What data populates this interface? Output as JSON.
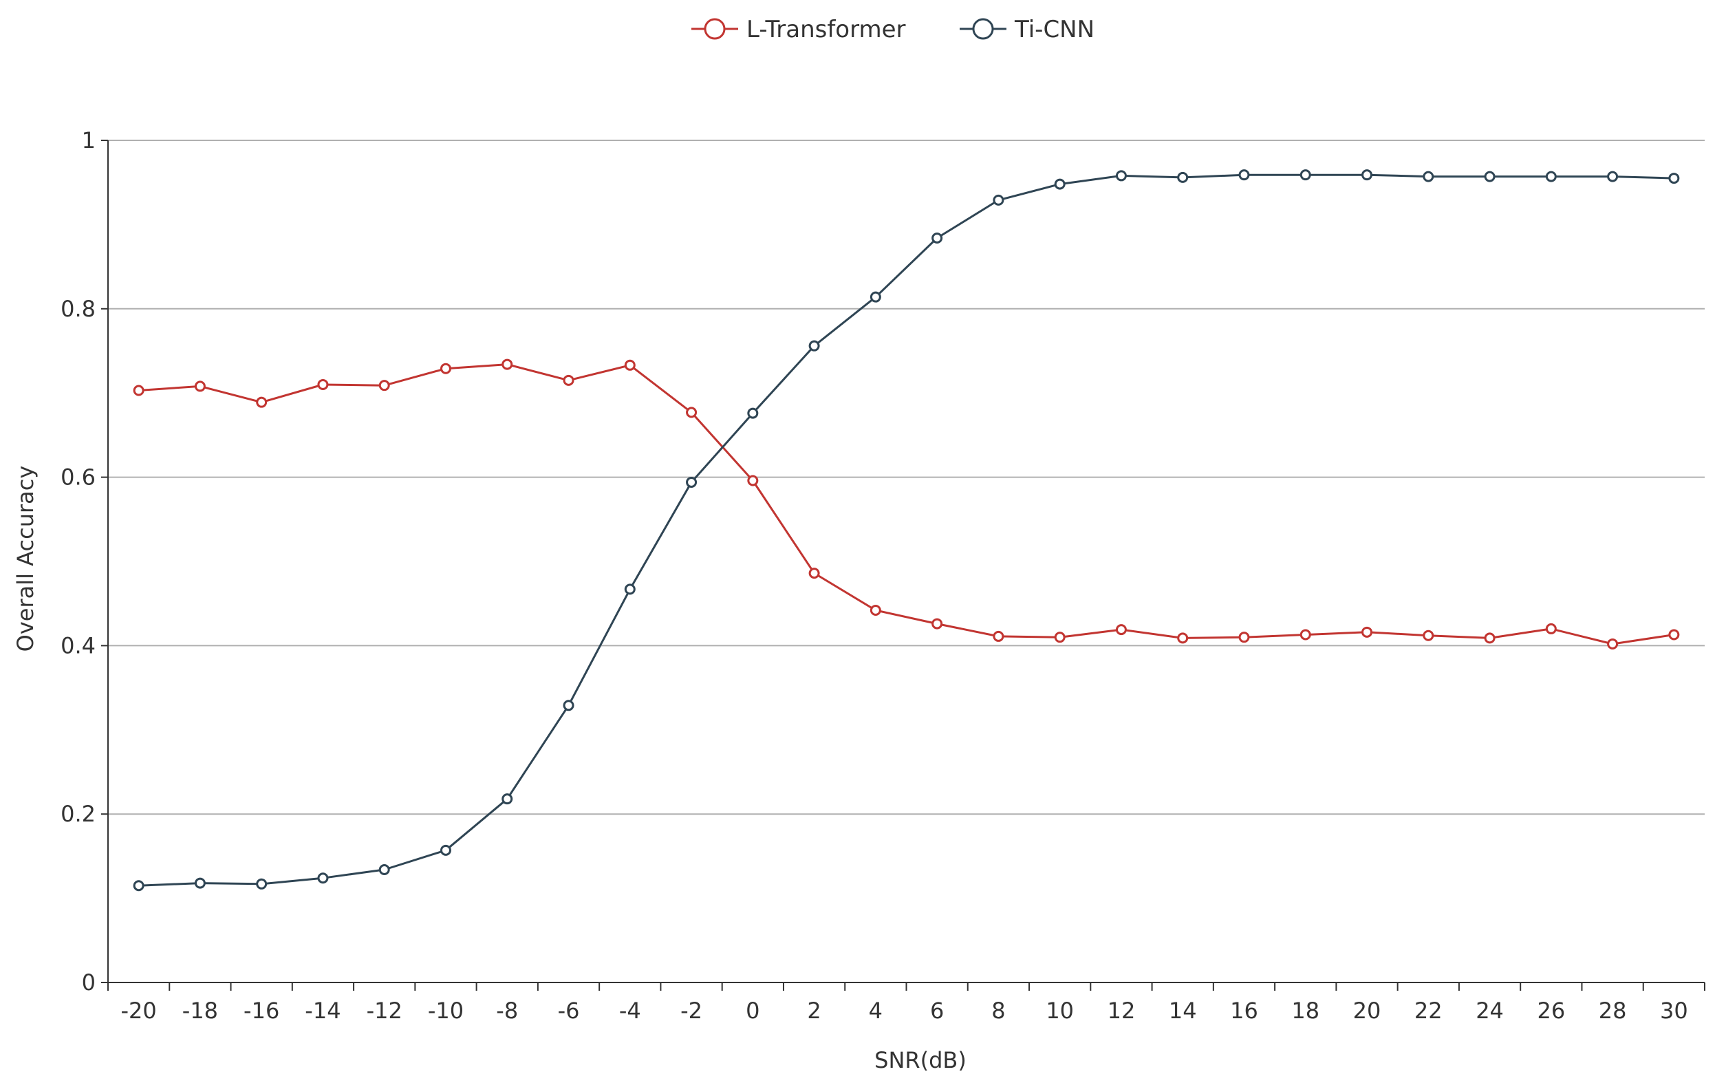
{
  "chart_data": {
    "type": "line",
    "title": "",
    "xlabel": "SNR(dB)",
    "ylabel": "Overall Accuracy",
    "x": [
      -20,
      -18,
      -16,
      -14,
      -12,
      -10,
      -8,
      -6,
      -4,
      -2,
      0,
      2,
      4,
      6,
      8,
      10,
      12,
      14,
      16,
      18,
      20,
      22,
      24,
      26,
      28,
      30
    ],
    "x_tick_labels": [
      "-20",
      "-18",
      "-16",
      "-14",
      "-12",
      "-10",
      "-8",
      "-6",
      "-4",
      "-2",
      "0",
      "2",
      "4",
      "6",
      "8",
      "10",
      "12",
      "14",
      "16",
      "18",
      "20",
      "22",
      "24",
      "26",
      "28",
      "30"
    ],
    "ylim": [
      0,
      1
    ],
    "y_ticks": [
      0,
      0.2,
      0.4,
      0.6,
      0.8,
      1
    ],
    "y_tick_labels": [
      "0",
      "0.2",
      "0.4",
      "0.6",
      "0.8",
      "1"
    ],
    "grid": "horizontal",
    "legend_position": "top-center",
    "series": [
      {
        "name": "L-Transformer",
        "color": "#c23531",
        "marker": "hollow-circle",
        "values": [
          0.703,
          0.708,
          0.689,
          0.71,
          0.709,
          0.729,
          0.734,
          0.715,
          0.733,
          0.677,
          0.596,
          0.486,
          0.442,
          0.426,
          0.411,
          0.41,
          0.419,
          0.409,
          0.41,
          0.413,
          0.416,
          0.412,
          0.409,
          0.42,
          0.402,
          0.413
        ]
      },
      {
        "name": "Ti-CNN",
        "color": "#2f4554",
        "marker": "hollow-circle",
        "values": [
          0.115,
          0.118,
          0.117,
          0.124,
          0.134,
          0.157,
          0.218,
          0.329,
          0.467,
          0.594,
          0.676,
          0.756,
          0.814,
          0.884,
          0.929,
          0.948,
          0.958,
          0.956,
          0.959,
          0.959,
          0.959,
          0.957,
          0.957,
          0.957,
          0.957,
          0.955
        ]
      }
    ]
  }
}
